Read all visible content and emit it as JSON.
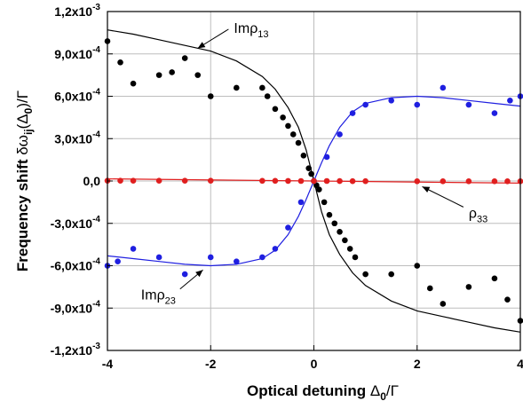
{
  "chart_data": {
    "type": "scatter",
    "title": "",
    "xlabel": {
      "main": "Optical detuning ",
      "sym": "Δ",
      "sub": "0",
      "tail": "/Γ"
    },
    "ylabel": {
      "main": "Frequency shift ",
      "sym": "δω",
      "sub": "ij",
      "mid": "(Δ",
      "sub2": "0",
      "tail": ")/Γ"
    },
    "xlim": [
      -4,
      4
    ],
    "ylim": [
      -0.0012,
      0.0012
    ],
    "grid": true,
    "x_ticks": [
      {
        "value": -4,
        "label": "-4"
      },
      {
        "value": -2,
        "label": "-2"
      },
      {
        "value": 0,
        "label": "0"
      },
      {
        "value": 2,
        "label": "2"
      },
      {
        "value": 4,
        "label": "4"
      }
    ],
    "y_ticks": [
      {
        "value": 0.0012,
        "mant": "1,2x10",
        "exp": "-3"
      },
      {
        "value": 0.0009,
        "mant": "9,0x10",
        "exp": "-4"
      },
      {
        "value": 0.0006,
        "mant": "6,0x10",
        "exp": "-4"
      },
      {
        "value": 0.0003,
        "mant": "3,0x10",
        "exp": "-4"
      },
      {
        "value": 0,
        "mant": "0,0",
        "exp": ""
      },
      {
        "value": -0.0003,
        "mant": "-3,0x10",
        "exp": "-4"
      },
      {
        "value": -0.0006,
        "mant": "-6,0x10",
        "exp": "-4"
      },
      {
        "value": -0.0009,
        "mant": "-9,0x10",
        "exp": "-4"
      },
      {
        "value": -0.0012,
        "mant": "-1,2x10",
        "exp": "-3"
      }
    ],
    "series": [
      {
        "key": "rho13",
        "color": "#000000",
        "points": [
          [
            -4.0,
            0.00099
          ],
          [
            -3.75,
            0.00084
          ],
          [
            -3.5,
            0.00069
          ],
          [
            -3.0,
            0.00075
          ],
          [
            -2.75,
            0.00077
          ],
          [
            -2.5,
            0.00087
          ],
          [
            -2.25,
            0.00075
          ],
          [
            -2.0,
            0.0006
          ],
          [
            -1.5,
            0.00066
          ],
          [
            -1.0,
            0.00066
          ],
          [
            -0.9,
            0.0006
          ],
          [
            -0.75,
            0.00051
          ],
          [
            -0.6,
            0.00045
          ],
          [
            -0.5,
            0.00039
          ],
          [
            -0.4,
            0.00033
          ],
          [
            -0.3,
            0.00027
          ],
          [
            -0.2,
            0.00018
          ],
          [
            -0.1,
            9e-05
          ],
          [
            -0.05,
            5e-05
          ],
          [
            0.0,
            0.0
          ],
          [
            0.05,
            -3e-05
          ],
          [
            0.1,
            -6e-05
          ],
          [
            0.2,
            -0.00015
          ],
          [
            0.3,
            -0.00024
          ],
          [
            0.4,
            -0.0003
          ],
          [
            0.5,
            -0.00036
          ],
          [
            0.6,
            -0.00042
          ],
          [
            0.7,
            -0.00048
          ],
          [
            0.8,
            -0.00054
          ],
          [
            1.0,
            -0.00066
          ],
          [
            1.5,
            -0.00066
          ],
          [
            2.0,
            -0.0006
          ],
          [
            2.25,
            -0.00076
          ],
          [
            2.5,
            -0.00087
          ],
          [
            3.0,
            -0.00075
          ],
          [
            3.5,
            -0.00069
          ],
          [
            3.75,
            -0.00084
          ],
          [
            4.0,
            -0.00099
          ]
        ],
        "fit": [
          [
            -4.0,
            0.00107
          ],
          [
            -3.5,
            0.00104
          ],
          [
            -3.0,
            0.001
          ],
          [
            -2.5,
            0.00096
          ],
          [
            -2.0,
            0.00092
          ],
          [
            -1.5,
            0.00085
          ],
          [
            -1.0,
            0.00074
          ],
          [
            -0.75,
            0.00065
          ],
          [
            -0.5,
            0.00052
          ],
          [
            -0.3,
            0.00038
          ],
          [
            -0.15,
            0.00022
          ],
          [
            0.0,
            0.0
          ],
          [
            0.15,
            -0.00022
          ],
          [
            0.3,
            -0.00038
          ],
          [
            0.5,
            -0.00052
          ],
          [
            0.75,
            -0.00065
          ],
          [
            1.0,
            -0.00074
          ],
          [
            1.5,
            -0.00085
          ],
          [
            2.0,
            -0.00092
          ],
          [
            2.5,
            -0.00096
          ],
          [
            3.0,
            -0.001
          ],
          [
            3.5,
            -0.00104
          ],
          [
            4.0,
            -0.00107
          ]
        ]
      },
      {
        "key": "rho23",
        "color": "#1f1fe0",
        "points": [
          [
            -4.0,
            -0.0006
          ],
          [
            -3.8,
            -0.00057
          ],
          [
            -3.5,
            -0.00048
          ],
          [
            -3.0,
            -0.00054
          ],
          [
            -2.5,
            -0.00066
          ],
          [
            -2.0,
            -0.00054
          ],
          [
            -1.5,
            -0.00057
          ],
          [
            -1.0,
            -0.00054
          ],
          [
            -0.75,
            -0.00048
          ],
          [
            -0.5,
            -0.00033
          ],
          [
            -0.25,
            -0.00015
          ],
          [
            0.0,
            0.0
          ],
          [
            0.25,
            0.00017
          ],
          [
            0.5,
            0.00033
          ],
          [
            0.75,
            0.00048
          ],
          [
            1.0,
            0.00054
          ],
          [
            1.5,
            0.00057
          ],
          [
            2.0,
            0.00054
          ],
          [
            2.5,
            0.00066
          ],
          [
            3.0,
            0.00054
          ],
          [
            3.5,
            0.00048
          ],
          [
            3.8,
            0.00057
          ],
          [
            4.0,
            0.0006
          ]
        ],
        "fit": [
          [
            -4.0,
            -0.00053
          ],
          [
            -3.5,
            -0.00055
          ],
          [
            -3.0,
            -0.00057
          ],
          [
            -2.5,
            -0.00059
          ],
          [
            -2.0,
            -0.0006
          ],
          [
            -1.5,
            -0.00059
          ],
          [
            -1.0,
            -0.00055
          ],
          [
            -0.75,
            -0.00049
          ],
          [
            -0.5,
            -0.00038
          ],
          [
            -0.3,
            -0.00025
          ],
          [
            -0.15,
            -0.00013
          ],
          [
            0.0,
            0.0
          ],
          [
            0.15,
            0.00013
          ],
          [
            0.3,
            0.00025
          ],
          [
            0.5,
            0.00038
          ],
          [
            0.75,
            0.00049
          ],
          [
            1.0,
            0.00055
          ],
          [
            1.5,
            0.00059
          ],
          [
            2.0,
            0.0006
          ],
          [
            2.5,
            0.00059
          ],
          [
            3.0,
            0.00057
          ],
          [
            3.5,
            0.00055
          ],
          [
            4.0,
            0.00053
          ]
        ]
      },
      {
        "key": "rho33",
        "color": "#e01f1f",
        "points": [
          [
            -4.0,
            2e-06
          ],
          [
            -3.75,
            2e-06
          ],
          [
            -3.5,
            2e-06
          ],
          [
            -3.0,
            2e-06
          ],
          [
            -2.5,
            2e-06
          ],
          [
            -2.0,
            2e-06
          ],
          [
            -1.0,
            1e-06
          ],
          [
            -0.75,
            1e-06
          ],
          [
            -0.5,
            5e-07
          ],
          [
            -0.25,
            0.0
          ],
          [
            0.0,
            0.0
          ],
          [
            0.25,
            0.0
          ],
          [
            0.5,
            -5e-07
          ],
          [
            0.75,
            -1e-06
          ],
          [
            1.0,
            -1e-06
          ],
          [
            2.0,
            -2e-06
          ],
          [
            2.5,
            -2e-06
          ],
          [
            3.0,
            -2e-06
          ],
          [
            3.5,
            -2e-06
          ],
          [
            3.75,
            -2e-06
          ],
          [
            4.0,
            -2e-06
          ]
        ],
        "fit": [
          [
            -4.0,
            1.5e-05
          ],
          [
            0.0,
            0.0
          ],
          [
            4.0,
            -1.5e-05
          ]
        ]
      }
    ],
    "annotations": [
      {
        "key": "rho13",
        "prefix": "Im",
        "sym": "ρ",
        "sub": "13",
        "x": -1.55,
        "y": 0.00105,
        "arrow_to": [
          -2.25,
          0.00094
        ]
      },
      {
        "key": "rho23",
        "prefix": "Im",
        "sym": "ρ",
        "sub": "23",
        "x": -3.35,
        "y": -0.00084,
        "arrow_to": [
          -2.15,
          -0.00063
        ]
      },
      {
        "key": "rho33",
        "prefix": "",
        "sym": "ρ",
        "sub": "33",
        "x": 3.0,
        "y": -0.00026,
        "arrow_to": [
          2.1,
          -4e-05
        ]
      }
    ]
  }
}
